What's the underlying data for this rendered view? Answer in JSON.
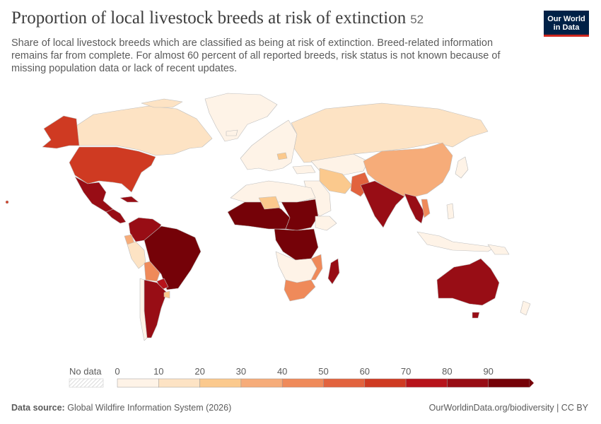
{
  "header": {
    "title": "Proportion of local livestock breeds at risk of extinction",
    "badge": "52",
    "subtitle": "Share of local livestock breeds which are classified as being at risk of extinction. Breed-related information remains far from complete. For almost 60 percent of all reported breeds, risk status is not known because of missing population data or lack of recent updates."
  },
  "logo": {
    "line1": "Our World",
    "line2": "in Data"
  },
  "legend": {
    "no_data_label": "No data",
    "ticks": [
      "0",
      "10",
      "20",
      "30",
      "40",
      "50",
      "60",
      "70",
      "80",
      "90"
    ],
    "colors": [
      "#fef3e7",
      "#fde3c4",
      "#fbc98d",
      "#f6ac79",
      "#ef8a5a",
      "#e2633e",
      "#cf3a22",
      "#b7131b",
      "#980d15",
      "#750208"
    ]
  },
  "map_colors": {
    "ocean": "#ffffff",
    "no_data": "#ffffff",
    "border": "#bdbdbd"
  },
  "footer": {
    "source_label": "Data source:",
    "source_text": "Global Wildfire Information System (2026)",
    "credit": "OurWorldinData.org/biodiversity | CC BY"
  }
}
